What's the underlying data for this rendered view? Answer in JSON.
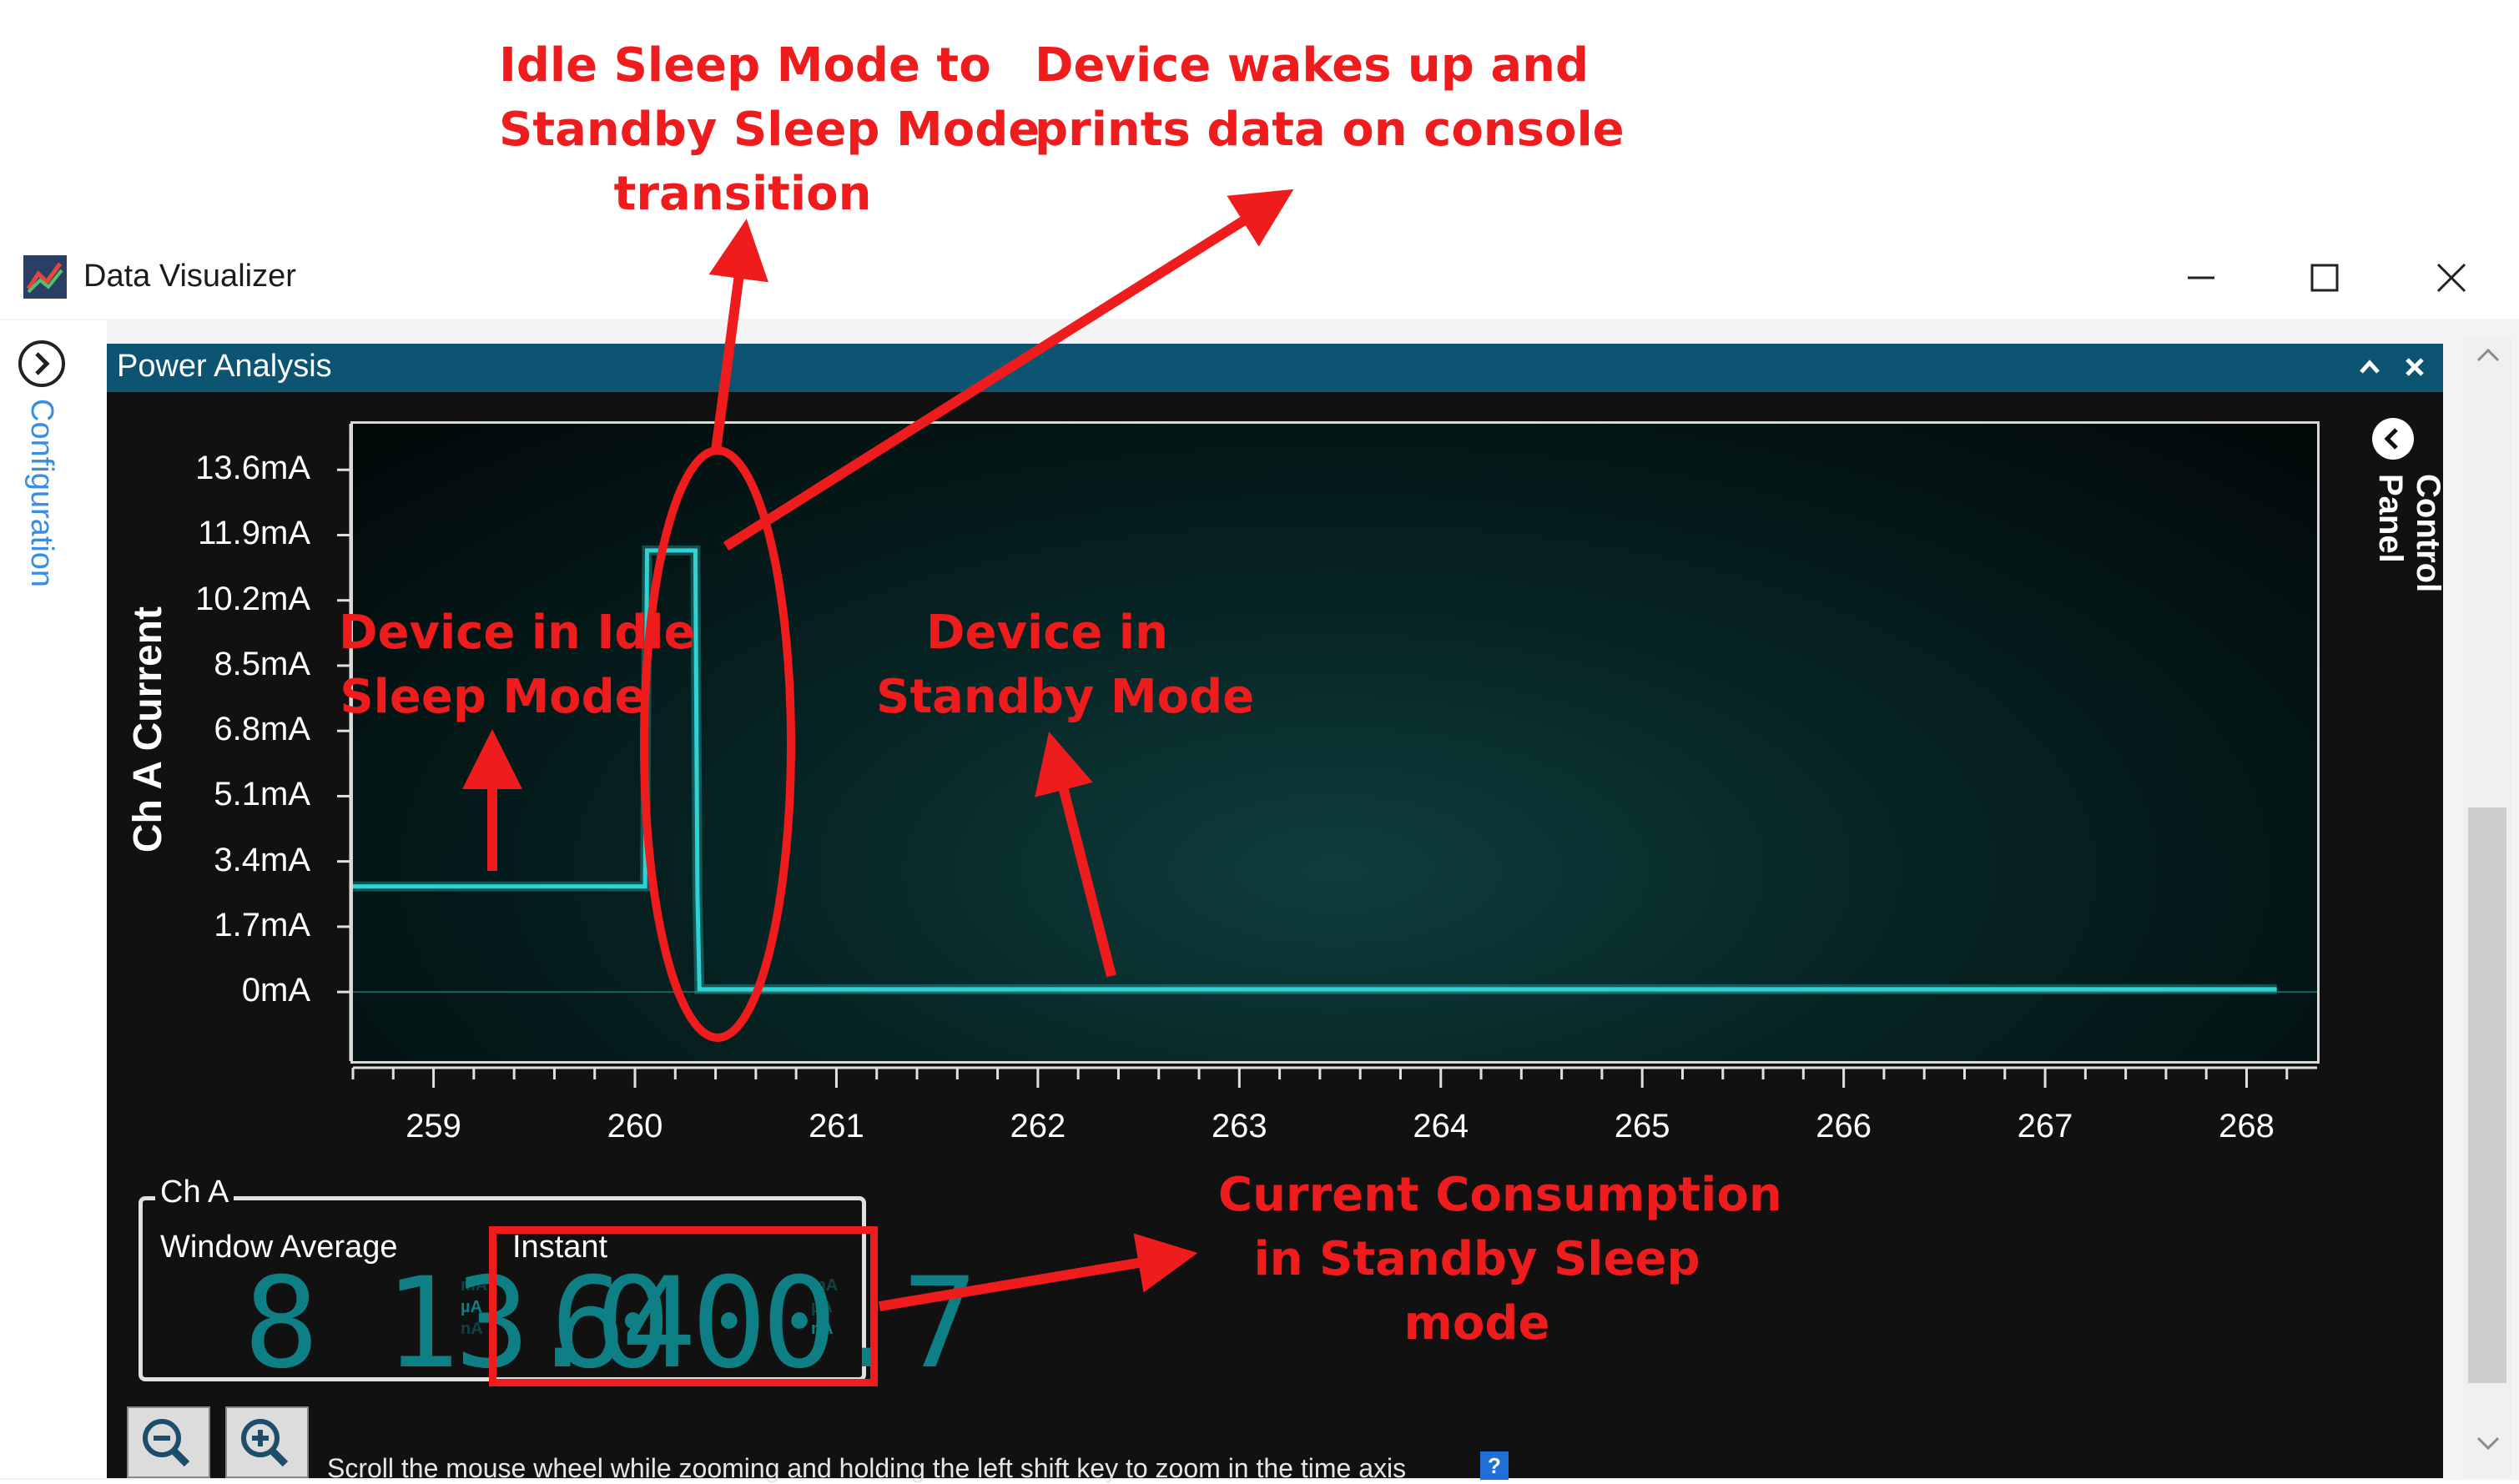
{
  "window": {
    "title": "Data Visualizer",
    "minimize_icon": "minimize-icon",
    "maximize_icon": "maximize-icon",
    "close_icon": "close-icon"
  },
  "sidebar": {
    "label": "Configuration"
  },
  "panel": {
    "title": "Power Analysis",
    "control_panel_label": "Control Panel"
  },
  "chart_data": {
    "type": "line",
    "ylabel": "Ch A Current",
    "y_ticks": [
      "13.6mA",
      "11.9mA",
      "10.2mA",
      "8.5mA",
      "6.8mA",
      "5.1mA",
      "3.4mA",
      "1.7mA",
      "0mA"
    ],
    "x_ticks": [
      "259",
      "260",
      "261",
      "262",
      "263",
      "264",
      "265",
      "266",
      "267",
      "268"
    ],
    "ylim_mA": [
      -1.8,
      14.8
    ],
    "xlim": [
      258.6,
      268.35
    ],
    "series": [
      {
        "color": "#2fd3d3",
        "x": [
          258.6,
          260.05,
          260.06,
          260.3,
          260.31,
          260.32,
          268.15
        ],
        "y": [
          2.75,
          2.75,
          11.5,
          11.5,
          2.5,
          0.07,
          0.07
        ]
      }
    ]
  },
  "channel_box": {
    "label": "Ch A",
    "window_average_label": "Window Average",
    "window_average_value": "8 13.0",
    "window_average_units": [
      "mA",
      "µA",
      "nA"
    ],
    "instant_label": "Instant",
    "instant_value": "6400.7",
    "instant_units": [
      "mA",
      "µA",
      "nA"
    ]
  },
  "footer": {
    "hint": "Scroll the mouse wheel while zooming and holding the left shift key to zoom in the time axis"
  },
  "annotations": {
    "idle_to_standby": [
      "Idle Sleep Mode to",
      "Standby Sleep Mode",
      "transition"
    ],
    "wakes_up": [
      "Device wakes up and",
      "prints data on console"
    ],
    "idle_mode": [
      "Device in Idle",
      "Sleep Mode"
    ],
    "standby_mode": [
      "Device in",
      "Standby Mode"
    ],
    "consumption": [
      "Current Consumption",
      "in Standby Sleep",
      "mode"
    ],
    "color": "#ee1c1c"
  }
}
